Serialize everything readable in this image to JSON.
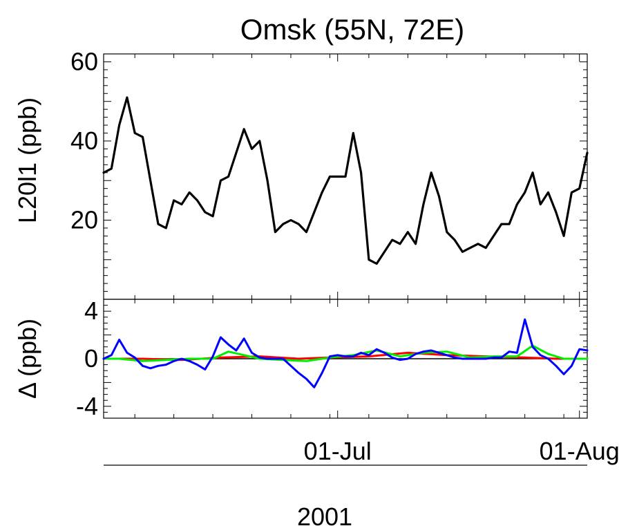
{
  "chart_data": {
    "title": "Omsk (55N, 72E)",
    "x_axis": {
      "type": "date",
      "tick_labels": [
        {
          "label": "01-Jul",
          "date": "2001-07-01"
        },
        {
          "label": "01-Aug",
          "date": "2001-08-01"
        }
      ],
      "xlabel": "2001",
      "range": [
        "2001-06-01",
        "2001-08-02"
      ]
    },
    "panels": [
      {
        "type": "line",
        "ylabel": "L20l1 (ppb)",
        "ylim": [
          0,
          62
        ],
        "yticks": [
          20,
          40,
          60
        ],
        "series": [
          {
            "color": "#000000",
            "x": [
              "2001-06-01",
              "2001-06-02",
              "2001-06-03",
              "2001-06-04",
              "2001-06-05",
              "2001-06-06",
              "2001-06-07",
              "2001-06-08",
              "2001-06-09",
              "2001-06-10",
              "2001-06-11",
              "2001-06-12",
              "2001-06-13",
              "2001-06-14",
              "2001-06-15",
              "2001-06-16",
              "2001-06-17",
              "2001-06-18",
              "2001-06-19",
              "2001-06-20",
              "2001-06-21",
              "2001-06-22",
              "2001-06-23",
              "2001-06-24",
              "2001-06-25",
              "2001-06-26",
              "2001-06-27",
              "2001-06-28",
              "2001-06-29",
              "2001-06-30",
              "2001-07-01",
              "2001-07-02",
              "2001-07-03",
              "2001-07-04",
              "2001-07-05",
              "2001-07-06",
              "2001-07-07",
              "2001-07-08",
              "2001-07-09",
              "2001-07-10",
              "2001-07-11",
              "2001-07-12",
              "2001-07-13",
              "2001-07-14",
              "2001-07-15",
              "2001-07-16",
              "2001-07-17",
              "2001-07-18",
              "2001-07-19",
              "2001-07-20",
              "2001-07-21",
              "2001-07-22",
              "2001-07-23",
              "2001-07-24",
              "2001-07-25",
              "2001-07-26",
              "2001-07-27",
              "2001-07-28",
              "2001-07-29",
              "2001-07-30",
              "2001-07-31",
              "2001-08-01",
              "2001-08-02"
            ],
            "y": [
              32,
              33,
              44,
              51,
              42,
              41,
              30,
              19,
              18,
              25,
              24,
              27,
              25,
              22,
              21,
              30,
              31,
              37,
              43,
              38,
              40,
              30,
              17,
              19,
              20,
              19,
              17,
              22,
              27,
              31,
              31,
              31,
              42,
              32,
              10,
              9,
              12,
              15,
              14,
              17,
              14,
              24,
              32,
              26,
              17,
              15,
              12,
              13,
              14,
              13,
              16,
              19,
              19,
              24,
              27,
              32,
              24,
              27,
              22,
              16,
              27,
              28,
              37
            ]
          }
        ]
      },
      {
        "type": "line",
        "ylabel": "Δ (ppb)",
        "ylim": [
          -5,
          5
        ],
        "yticks": [
          -4,
          0,
          4
        ],
        "series": [
          {
            "color": "#ff0000",
            "x": [
              "2001-06-01",
              "2001-06-06",
              "2001-06-11",
              "2001-06-16",
              "2001-06-21",
              "2001-06-26",
              "2001-06-30",
              "2001-07-05",
              "2001-07-10",
              "2001-07-15",
              "2001-07-20",
              "2001-07-25",
              "2001-07-29",
              "2001-08-02"
            ],
            "y": [
              0.0,
              0.0,
              -0.1,
              0.1,
              0.2,
              0.0,
              0.1,
              0.2,
              0.5,
              0.3,
              0.2,
              0.1,
              0.0,
              0.0
            ]
          },
          {
            "color": "#00ee00",
            "x": [
              "2001-06-01",
              "2001-06-03",
              "2001-06-06",
              "2001-06-09",
              "2001-06-12",
              "2001-06-15",
              "2001-06-17",
              "2001-06-19",
              "2001-06-21",
              "2001-06-24",
              "2001-06-27",
              "2001-06-30",
              "2001-07-03",
              "2001-07-06",
              "2001-07-09",
              "2001-07-12",
              "2001-07-15",
              "2001-07-18",
              "2001-07-21",
              "2001-07-24",
              "2001-07-26",
              "2001-07-28",
              "2001-07-30",
              "2001-08-02"
            ],
            "y": [
              0.0,
              0.0,
              -0.2,
              -0.1,
              0.0,
              0.0,
              0.6,
              0.3,
              0.0,
              -0.1,
              -0.2,
              0.1,
              0.3,
              0.7,
              0.2,
              0.5,
              0.6,
              0.1,
              0.2,
              0.2,
              1.1,
              0.4,
              0.0,
              0.0
            ]
          },
          {
            "color": "#0000ff",
            "x": [
              "2001-06-01",
              "2001-06-02",
              "2001-06-03",
              "2001-06-04",
              "2001-06-05",
              "2001-06-06",
              "2001-06-07",
              "2001-06-08",
              "2001-06-09",
              "2001-06-10",
              "2001-06-11",
              "2001-06-12",
              "2001-06-13",
              "2001-06-14",
              "2001-06-15",
              "2001-06-16",
              "2001-06-17",
              "2001-06-18",
              "2001-06-19",
              "2001-06-20",
              "2001-06-21",
              "2001-06-22",
              "2001-06-23",
              "2001-06-24",
              "2001-06-25",
              "2001-06-26",
              "2001-06-27",
              "2001-06-28",
              "2001-06-29",
              "2001-06-30",
              "2001-07-01",
              "2001-07-02",
              "2001-07-03",
              "2001-07-04",
              "2001-07-05",
              "2001-07-06",
              "2001-07-07",
              "2001-07-08",
              "2001-07-09",
              "2001-07-10",
              "2001-07-11",
              "2001-07-12",
              "2001-07-13",
              "2001-07-14",
              "2001-07-15",
              "2001-07-16",
              "2001-07-17",
              "2001-07-18",
              "2001-07-19",
              "2001-07-20",
              "2001-07-21",
              "2001-07-22",
              "2001-07-23",
              "2001-07-24",
              "2001-07-25",
              "2001-07-26",
              "2001-07-27",
              "2001-07-28",
              "2001-07-29",
              "2001-07-30",
              "2001-07-31",
              "2001-08-01",
              "2001-08-02"
            ],
            "y": [
              0.0,
              0.3,
              1.6,
              0.5,
              0.1,
              -0.6,
              -0.8,
              -0.6,
              -0.5,
              -0.2,
              0.0,
              -0.2,
              -0.5,
              -0.9,
              0.2,
              1.8,
              1.2,
              0.7,
              1.7,
              0.5,
              0.1,
              0.0,
              0.0,
              0.0,
              -0.6,
              -1.2,
              -1.7,
              -2.4,
              -1.2,
              0.2,
              0.3,
              0.2,
              0.2,
              0.5,
              0.3,
              0.8,
              0.5,
              0.1,
              -0.1,
              0.0,
              0.4,
              0.6,
              0.7,
              0.5,
              0.3,
              0.1,
              0.0,
              0.0,
              0.0,
              0.0,
              0.1,
              0.1,
              0.6,
              0.5,
              3.3,
              1.0,
              0.3,
              0.0,
              -0.6,
              -1.3,
              -0.6,
              0.8,
              0.7
            ]
          }
        ]
      }
    ]
  }
}
